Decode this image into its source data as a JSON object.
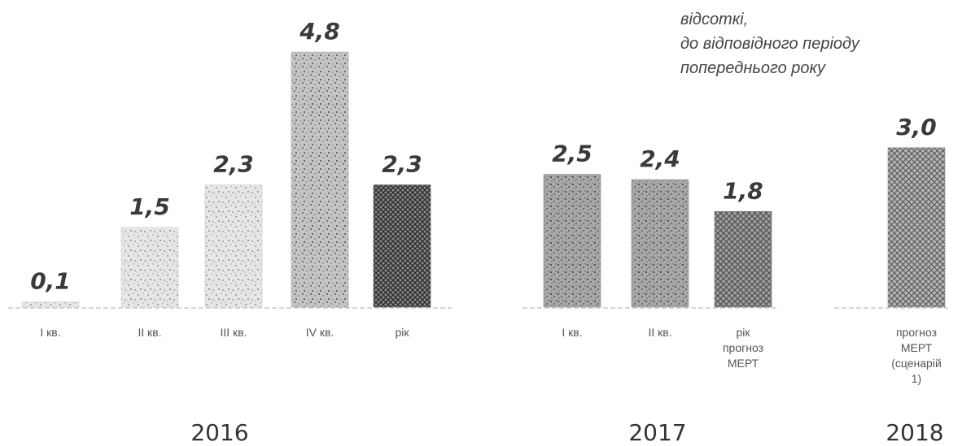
{
  "chart_data": {
    "type": "bar",
    "title": "",
    "annotation": [
      "відсоткі,",
      "до відповідного періоду",
      "попереднього року"
    ],
    "xlabel": "",
    "ylabel": "",
    "ylim": [
      0,
      4.8
    ],
    "grid": false,
    "legend": "none",
    "groups": [
      {
        "year": "2016",
        "bars": [
          {
            "label": [
              "I кв."
            ],
            "value": 0.1,
            "display": "0,1",
            "pattern": "speckle-light"
          },
          {
            "label": [
              "II кв."
            ],
            "value": 1.5,
            "display": "1,5",
            "pattern": "speckle-light"
          },
          {
            "label": [
              "III кв."
            ],
            "value": 2.3,
            "display": "2,3",
            "pattern": "speckle-light"
          },
          {
            "label": [
              "IV кв."
            ],
            "value": 4.8,
            "display": "4,8",
            "pattern": "speckle-medium"
          },
          {
            "label": [
              "рік"
            ],
            "value": 2.3,
            "display": "2,3",
            "pattern": "crosshatch-dark"
          }
        ]
      },
      {
        "year": "2017",
        "bars": [
          {
            "label": [
              "I кв."
            ],
            "value": 2.5,
            "display": "2,5",
            "pattern": "speckle-dark"
          },
          {
            "label": [
              "II кв."
            ],
            "value": 2.4,
            "display": "2,4",
            "pattern": "speckle-dark"
          },
          {
            "label": [
              "рік",
              "прогноз",
              "МЕРТ"
            ],
            "value": 1.8,
            "display": "1,8",
            "pattern": "crosshatch-medium"
          }
        ]
      },
      {
        "year": "2018",
        "bars": [
          {
            "label": [
              "прогноз",
              "МЕРТ",
              "(сценарій",
              "1)"
            ],
            "value": 3.0,
            "display": "3,0",
            "pattern": "crosshatch-light"
          }
        ]
      }
    ],
    "colors": {
      "speckle-light": "#cfcfcf",
      "speckle-medium": "#a9a9a9",
      "speckle-dark": "#9a9a9a",
      "crosshatch-dark": "#555555",
      "crosshatch-medium": "#7a7a7a",
      "crosshatch-light": "#8c8c8c"
    }
  }
}
